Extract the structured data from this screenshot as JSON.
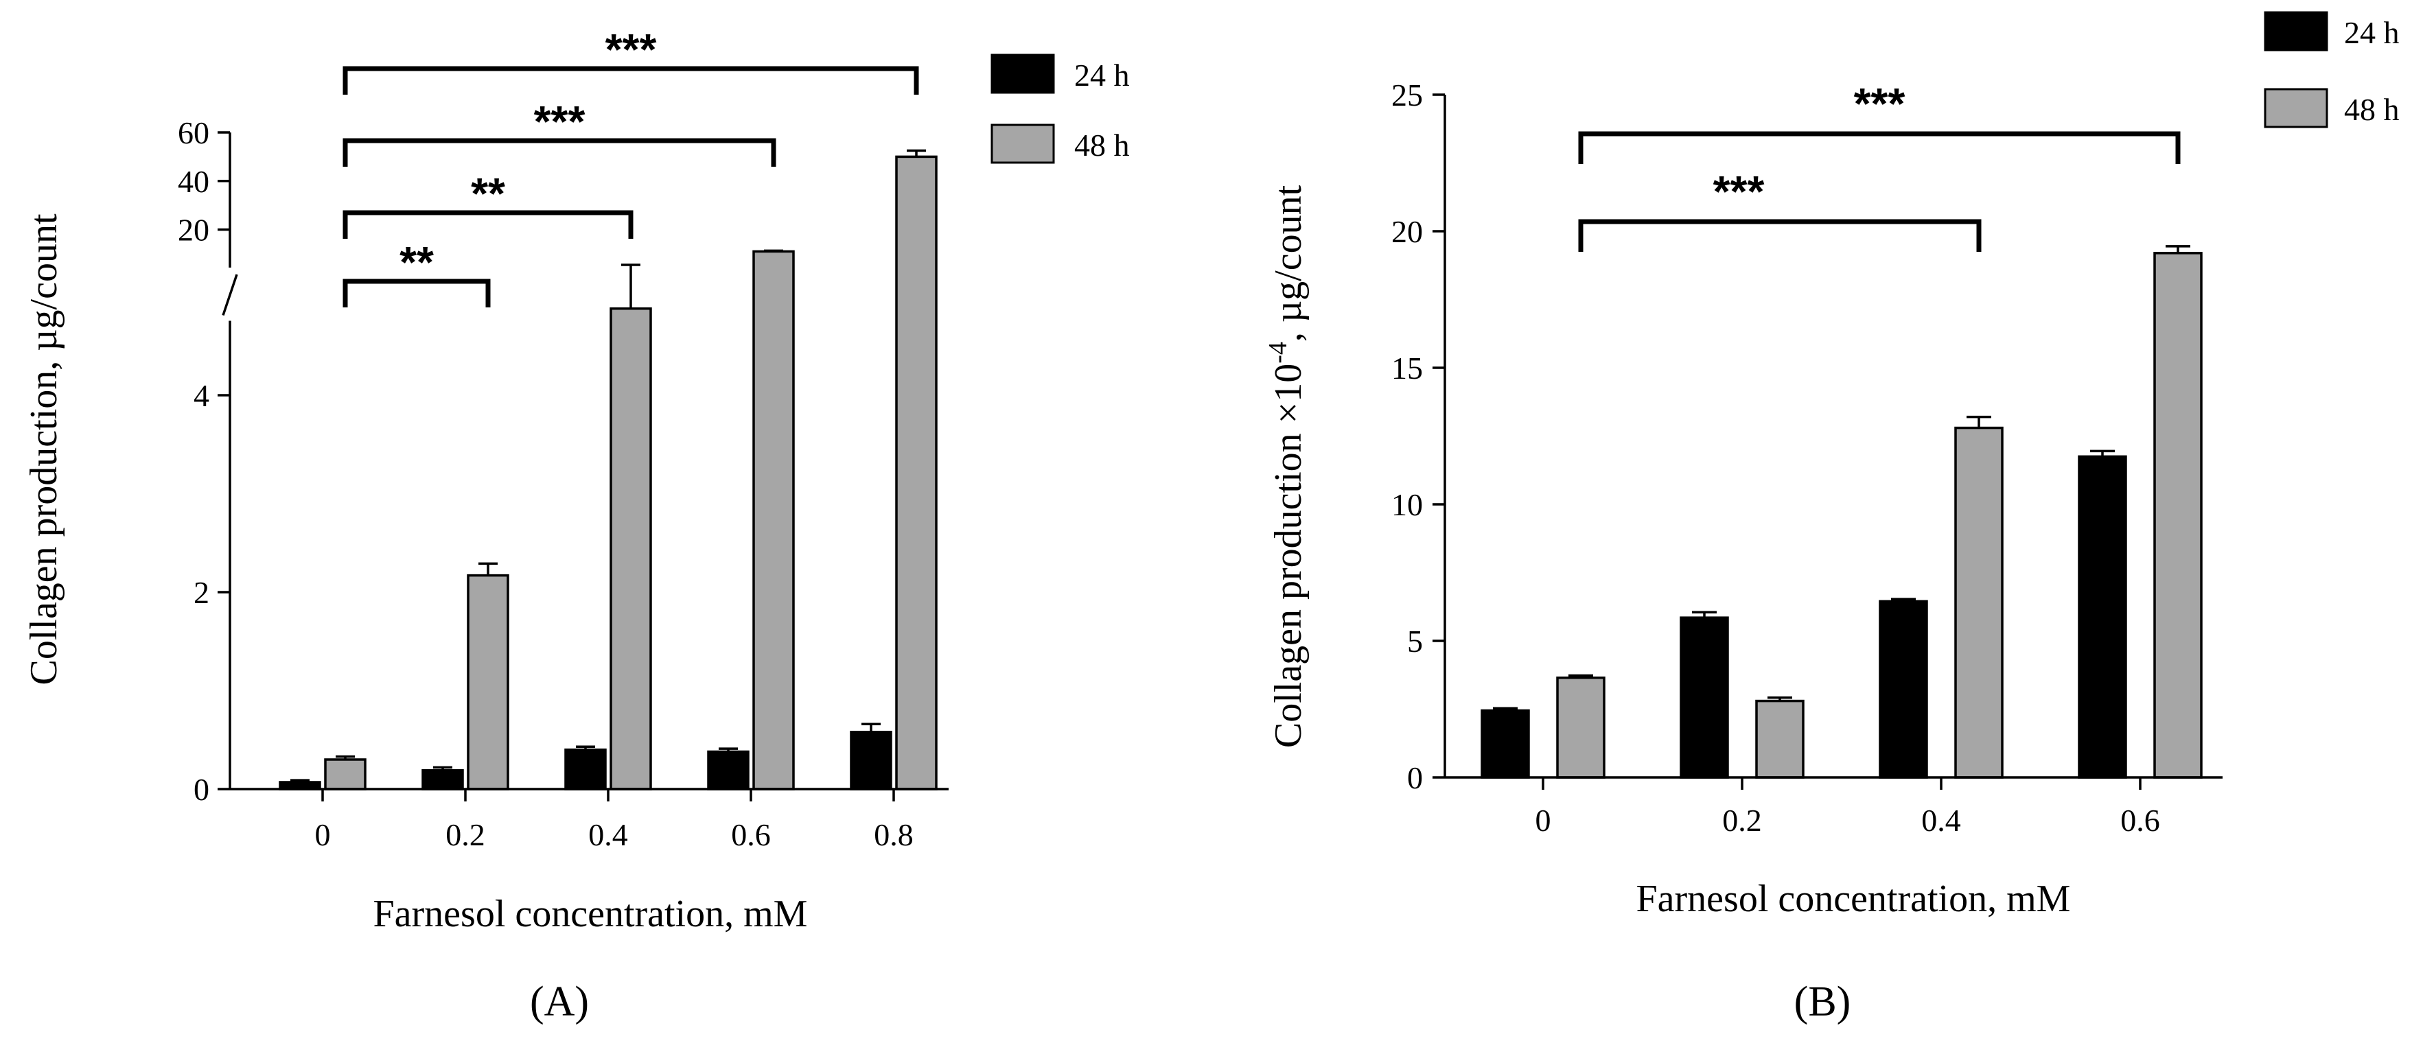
{
  "chart_data": [
    {
      "panel_label": "(A)",
      "type": "bar",
      "xlabel": "Farnesol concentration, mM",
      "ylabel": "Collagen production, µg/count",
      "categories": [
        "0",
        "0.2",
        "0.4",
        "0.6",
        "0.8"
      ],
      "axis_break": true,
      "lower_ylim": [
        0,
        5
      ],
      "upper_ylim": [
        10,
        60
      ],
      "lower_ticks": [
        "0",
        "2",
        "4"
      ],
      "upper_ticks": [
        "20",
        "40",
        "60"
      ],
      "series": [
        {
          "name": "24 h",
          "color": "#000000",
          "values": [
            0.07,
            0.19,
            0.4,
            0.38,
            0.58
          ],
          "errors": [
            0.02,
            0.03,
            0.03,
            0.03,
            0.08
          ]
        },
        {
          "name": "48 h",
          "color": "#a6a6a6",
          "values": [
            0.3,
            2.17,
            4.88,
            11.0,
            50.0
          ],
          "errors": [
            0.03,
            0.12,
            0.6,
            0.3,
            2.5
          ]
        }
      ],
      "brackets": [
        {
          "from": "0",
          "to": "0.2",
          "label": "**"
        },
        {
          "from": "0",
          "to": "0.4",
          "label": "**"
        },
        {
          "from": "0",
          "to": "0.6",
          "label": "***"
        },
        {
          "from": "0",
          "to": "0.8",
          "label": "***"
        }
      ]
    },
    {
      "panel_label": "(B)",
      "type": "bar",
      "xlabel": "Farnesol concentration, mM",
      "ylabel_main": "Collagen production ×10",
      "ylabel_exp": "-4",
      "ylabel_tail": ", µg/count",
      "categories": [
        "0",
        "0.2",
        "0.4",
        "0.6"
      ],
      "ylim": [
        0,
        25
      ],
      "yticks": [
        "0",
        "5",
        "10",
        "15",
        "20",
        "25"
      ],
      "series": [
        {
          "name": "24 h",
          "color": "#000000",
          "values": [
            2.45,
            5.85,
            6.45,
            11.75
          ],
          "errors": [
            0.08,
            0.2,
            0.08,
            0.2
          ]
        },
        {
          "name": "48 h",
          "color": "#a6a6a6",
          "values": [
            3.65,
            2.8,
            12.8,
            19.2
          ],
          "errors": [
            0.08,
            0.12,
            0.4,
            0.25
          ]
        }
      ],
      "brackets": [
        {
          "from": "0",
          "to": "0.4",
          "label": "***"
        },
        {
          "from": "0",
          "to": "0.6",
          "label": "***"
        }
      ]
    }
  ]
}
